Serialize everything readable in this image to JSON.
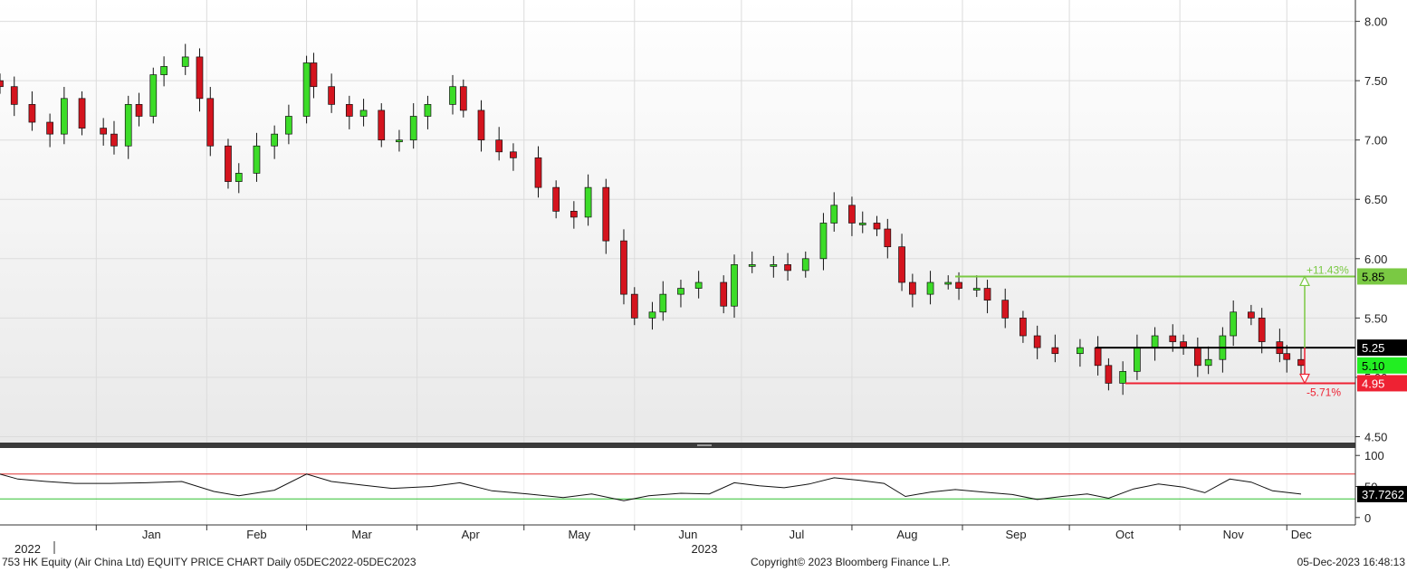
{
  "footer": {
    "left": "753 HK Equity (Air China Ltd) EQUITY PRICE CHART  Daily 05DEC2022-05DEC2023",
    "center": "Copyright© 2023 Bloomberg Finance L.P.",
    "right": "05-Dec-2023 16:48:13"
  },
  "chart_data": {
    "type": "candlestick",
    "years": [
      "2022",
      "2023"
    ],
    "x_ticks": [
      "Jan",
      "Feb",
      "Mar",
      "Apr",
      "May",
      "Jun",
      "Jul",
      "Aug",
      "Sep",
      "Oct",
      "Nov",
      "Dec"
    ],
    "y_ticks": [
      "8.00",
      "7.50",
      "7.00",
      "6.50",
      "6.00",
      "5.50",
      "5.00",
      "4.50"
    ],
    "ylim": [
      4.45,
      8.18
    ],
    "candle_colors": {
      "up": "#3cdc28",
      "down": "#d4141e"
    },
    "price_series": [
      {
        "date": "2022-12-05",
        "close": 7.45
      },
      {
        "date": "2022-12-09",
        "close": 7.3
      },
      {
        "date": "2022-12-14",
        "close": 7.15
      },
      {
        "date": "2022-12-19",
        "close": 7.05
      },
      {
        "date": "2022-12-23",
        "close": 7.35
      },
      {
        "date": "2022-12-28",
        "close": 7.1
      },
      {
        "date": "2023-01-03",
        "close": 7.05
      },
      {
        "date": "2023-01-06",
        "close": 6.95
      },
      {
        "date": "2023-01-10",
        "close": 7.3
      },
      {
        "date": "2023-01-13",
        "close": 7.2
      },
      {
        "date": "2023-01-17",
        "close": 7.55
      },
      {
        "date": "2023-01-20",
        "close": 7.62
      },
      {
        "date": "2023-01-26",
        "close": 7.7
      },
      {
        "date": "2023-01-30",
        "close": 7.35
      },
      {
        "date": "2023-02-02",
        "close": 6.95
      },
      {
        "date": "2023-02-07",
        "close": 6.65
      },
      {
        "date": "2023-02-10",
        "close": 6.72
      },
      {
        "date": "2023-02-15",
        "close": 6.95
      },
      {
        "date": "2023-02-20",
        "close": 7.05
      },
      {
        "date": "2023-02-24",
        "close": 7.2
      },
      {
        "date": "2023-03-01",
        "close": 7.65
      },
      {
        "date": "2023-03-03",
        "close": 7.45
      },
      {
        "date": "2023-03-08",
        "close": 7.3
      },
      {
        "date": "2023-03-13",
        "close": 7.2
      },
      {
        "date": "2023-03-17",
        "close": 7.25
      },
      {
        "date": "2023-03-22",
        "close": 7.0
      },
      {
        "date": "2023-03-27",
        "close": 7.0
      },
      {
        "date": "2023-03-31",
        "close": 7.2
      },
      {
        "date": "2023-04-04",
        "close": 7.3
      },
      {
        "date": "2023-04-11",
        "close": 7.45
      },
      {
        "date": "2023-04-14",
        "close": 7.25
      },
      {
        "date": "2023-04-19",
        "close": 7.0
      },
      {
        "date": "2023-04-24",
        "close": 6.9
      },
      {
        "date": "2023-04-28",
        "close": 6.85
      },
      {
        "date": "2023-05-05",
        "close": 6.6
      },
      {
        "date": "2023-05-10",
        "close": 6.4
      },
      {
        "date": "2023-05-15",
        "close": 6.35
      },
      {
        "date": "2023-05-19",
        "close": 6.6
      },
      {
        "date": "2023-05-24",
        "close": 6.15
      },
      {
        "date": "2023-05-29",
        "close": 5.7
      },
      {
        "date": "2023-06-01",
        "close": 5.5
      },
      {
        "date": "2023-06-06",
        "close": 5.55
      },
      {
        "date": "2023-06-09",
        "close": 5.7
      },
      {
        "date": "2023-06-14",
        "close": 5.75
      },
      {
        "date": "2023-06-19",
        "close": 5.8
      },
      {
        "date": "2023-06-26",
        "close": 5.6
      },
      {
        "date": "2023-06-29",
        "close": 5.95
      },
      {
        "date": "2023-07-04",
        "close": 5.95
      },
      {
        "date": "2023-07-10",
        "close": 5.95
      },
      {
        "date": "2023-07-14",
        "close": 5.9
      },
      {
        "date": "2023-07-19",
        "close": 6.0
      },
      {
        "date": "2023-07-24",
        "close": 6.3
      },
      {
        "date": "2023-07-27",
        "close": 6.45
      },
      {
        "date": "2023-08-01",
        "close": 6.3
      },
      {
        "date": "2023-08-04",
        "close": 6.3
      },
      {
        "date": "2023-08-08",
        "close": 6.25
      },
      {
        "date": "2023-08-11",
        "close": 6.1
      },
      {
        "date": "2023-08-15",
        "close": 5.8
      },
      {
        "date": "2023-08-18",
        "close": 5.7
      },
      {
        "date": "2023-08-23",
        "close": 5.8
      },
      {
        "date": "2023-08-28",
        "close": 5.8
      },
      {
        "date": "2023-08-31",
        "close": 5.75
      },
      {
        "date": "2023-09-05",
        "close": 5.75
      },
      {
        "date": "2023-09-08",
        "close": 5.65
      },
      {
        "date": "2023-09-13",
        "close": 5.5
      },
      {
        "date": "2023-09-18",
        "close": 5.35
      },
      {
        "date": "2023-09-22",
        "close": 5.25
      },
      {
        "date": "2023-09-27",
        "close": 5.2
      },
      {
        "date": "2023-10-04",
        "close": 5.25
      },
      {
        "date": "2023-10-09",
        "close": 5.1
      },
      {
        "date": "2023-10-12",
        "close": 4.95
      },
      {
        "date": "2023-10-16",
        "close": 5.05
      },
      {
        "date": "2023-10-20",
        "close": 5.25
      },
      {
        "date": "2023-10-25",
        "close": 5.35
      },
      {
        "date": "2023-10-30",
        "close": 5.3
      },
      {
        "date": "2023-11-02",
        "close": 5.25
      },
      {
        "date": "2023-11-06",
        "close": 5.1
      },
      {
        "date": "2023-11-09",
        "close": 5.15
      },
      {
        "date": "2023-11-13",
        "close": 5.35
      },
      {
        "date": "2023-11-16",
        "close": 5.55
      },
      {
        "date": "2023-11-21",
        "close": 5.5
      },
      {
        "date": "2023-11-24",
        "close": 5.3
      },
      {
        "date": "2023-11-29",
        "close": 5.2
      },
      {
        "date": "2023-12-01",
        "close": 5.15
      },
      {
        "date": "2023-12-05",
        "close": 5.1
      }
    ],
    "annotations": [
      {
        "label": "5.85",
        "value": 5.85,
        "color": "#7ac943",
        "change_label": "+11.43%"
      },
      {
        "label": "5.25",
        "value": 5.25,
        "color": "#000000"
      },
      {
        "label": "5.10",
        "value": 5.1,
        "color": "#22ee22"
      },
      {
        "label": "4.95",
        "value": 4.95,
        "color": "#ee2233",
        "change_label": "-5.71%"
      }
    ],
    "lower_panel": {
      "type": "line",
      "y_ticks": [
        "100",
        "50",
        "0"
      ],
      "ylim": [
        -12,
        112
      ],
      "upper_band": 70,
      "lower_band": 30,
      "last_value_label": "37.7262",
      "series": [
        {
          "date": "2022-12-05",
          "value": 70
        },
        {
          "date": "2022-12-10",
          "value": 62
        },
        {
          "date": "2022-12-18",
          "value": 58
        },
        {
          "date": "2022-12-26",
          "value": 55
        },
        {
          "date": "2023-01-05",
          "value": 55
        },
        {
          "date": "2023-01-15",
          "value": 56
        },
        {
          "date": "2023-01-25",
          "value": 58
        },
        {
          "date": "2023-02-03",
          "value": 42
        },
        {
          "date": "2023-02-10",
          "value": 35
        },
        {
          "date": "2023-02-20",
          "value": 44
        },
        {
          "date": "2023-03-01",
          "value": 70
        },
        {
          "date": "2023-03-08",
          "value": 58
        },
        {
          "date": "2023-03-17",
          "value": 52
        },
        {
          "date": "2023-03-25",
          "value": 47
        },
        {
          "date": "2023-04-05",
          "value": 50
        },
        {
          "date": "2023-04-13",
          "value": 56
        },
        {
          "date": "2023-04-22",
          "value": 43
        },
        {
          "date": "2023-05-02",
          "value": 38
        },
        {
          "date": "2023-05-12",
          "value": 32
        },
        {
          "date": "2023-05-20",
          "value": 38
        },
        {
          "date": "2023-05-29",
          "value": 27
        },
        {
          "date": "2023-06-05",
          "value": 35
        },
        {
          "date": "2023-06-14",
          "value": 39
        },
        {
          "date": "2023-06-22",
          "value": 38
        },
        {
          "date": "2023-06-29",
          "value": 56
        },
        {
          "date": "2023-07-06",
          "value": 51
        },
        {
          "date": "2023-07-13",
          "value": 48
        },
        {
          "date": "2023-07-20",
          "value": 54
        },
        {
          "date": "2023-07-27",
          "value": 64
        },
        {
          "date": "2023-08-03",
          "value": 60
        },
        {
          "date": "2023-08-10",
          "value": 55
        },
        {
          "date": "2023-08-16",
          "value": 34
        },
        {
          "date": "2023-08-23",
          "value": 41
        },
        {
          "date": "2023-08-30",
          "value": 45
        },
        {
          "date": "2023-09-07",
          "value": 41
        },
        {
          "date": "2023-09-15",
          "value": 37
        },
        {
          "date": "2023-09-22",
          "value": 29
        },
        {
          "date": "2023-09-29",
          "value": 34
        },
        {
          "date": "2023-10-06",
          "value": 38
        },
        {
          "date": "2023-10-12",
          "value": 31
        },
        {
          "date": "2023-10-19",
          "value": 46
        },
        {
          "date": "2023-10-26",
          "value": 54
        },
        {
          "date": "2023-11-02",
          "value": 49
        },
        {
          "date": "2023-11-08",
          "value": 40
        },
        {
          "date": "2023-11-15",
          "value": 62
        },
        {
          "date": "2023-11-21",
          "value": 57
        },
        {
          "date": "2023-11-27",
          "value": 43
        },
        {
          "date": "2023-12-05",
          "value": 37.7
        }
      ]
    }
  }
}
